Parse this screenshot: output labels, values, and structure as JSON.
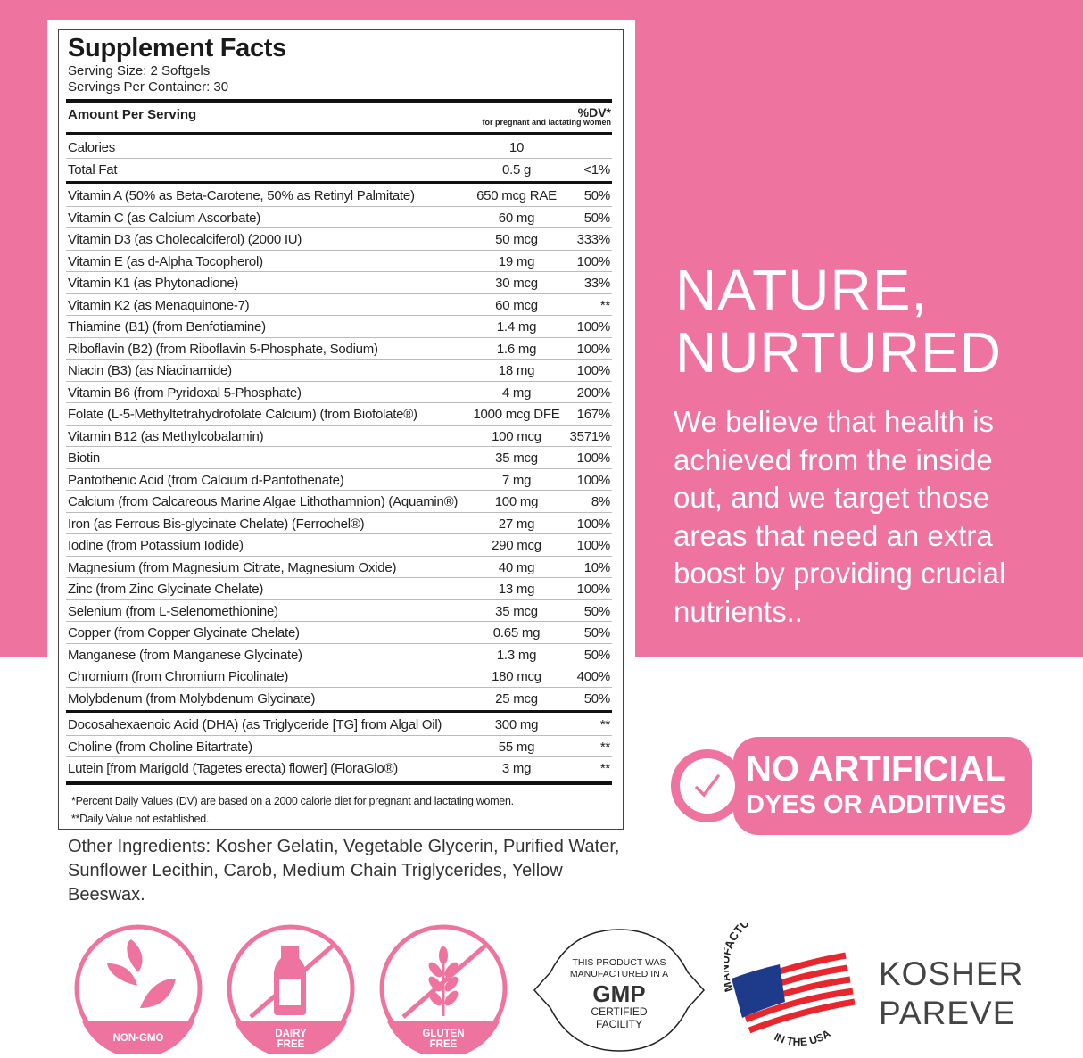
{
  "colors": {
    "brand_pink": "#ee739f"
  },
  "facts": {
    "title": "Supplement Facts",
    "serving_size": "Serving Size: 2 Softgels",
    "servings_per_container": "Servings Per Container: 30",
    "amount_header": "Amount Per Serving",
    "dv_header": "%DV*",
    "dv_subheader": "for pregnant and lactating women",
    "basic": [
      {
        "name": "Calories",
        "amount": "10",
        "dv": ""
      },
      {
        "name": "Total Fat",
        "amount": "0.5 g",
        "dv": "<1%"
      }
    ],
    "vitamins": [
      {
        "name": "Vitamin A (50% as Beta-Carotene, 50% as Retinyl Palmitate)",
        "amount": "650 mcg RAE",
        "dv": "50%"
      },
      {
        "name": "Vitamin C (as Calcium Ascorbate)",
        "amount": "60 mg",
        "dv": "50%"
      },
      {
        "name": "Vitamin D3 (as Cholecalciferol) (2000 IU)",
        "amount": "50 mcg",
        "dv": "333%"
      },
      {
        "name": "Vitamin E (as d-Alpha Tocopherol)",
        "amount": "19 mg",
        "dv": "100%"
      },
      {
        "name": "Vitamin K1 (as Phytonadione)",
        "amount": "30 mcg",
        "dv": "33%"
      },
      {
        "name": "Vitamin K2 (as Menaquinone-7)",
        "amount": "60 mcg",
        "dv": "**"
      },
      {
        "name": "Thiamine (B1) (from Benfotiamine)",
        "amount": "1.4 mg",
        "dv": "100%"
      },
      {
        "name": "Riboflavin (B2) (from Riboflavin 5-Phosphate, Sodium)",
        "amount": "1.6 mg",
        "dv": "100%"
      },
      {
        "name": "Niacin (B3) (as Niacinamide)",
        "amount": "18 mg",
        "dv": "100%"
      },
      {
        "name": "Vitamin B6 (from Pyridoxal 5-Phosphate)",
        "amount": "4 mg",
        "dv": "200%"
      },
      {
        "name": "Folate (L-5-Methyltetrahydrofolate Calcium) (from Biofolate®)",
        "amount": "1000 mcg DFE",
        "dv": "167%"
      },
      {
        "name": "Vitamin B12 (as Methylcobalamin)",
        "amount": "100 mcg",
        "dv": "3571%"
      },
      {
        "name": "Biotin",
        "amount": "35 mcg",
        "dv": "100%"
      },
      {
        "name": "Pantothenic Acid (from Calcium d-Pantothenate)",
        "amount": "7 mg",
        "dv": "100%"
      },
      {
        "name": "Calcium (from Calcareous Marine Algae Lithothamnion) (Aquamin®)",
        "amount": "100 mg",
        "dv": "8%"
      },
      {
        "name": "Iron (as Ferrous Bis-glycinate Chelate) (Ferrochel®)",
        "amount": "27 mg",
        "dv": "100%"
      },
      {
        "name": "Iodine (from Potassium Iodide)",
        "amount": "290 mcg",
        "dv": "100%"
      },
      {
        "name": "Magnesium (from Magnesium Citrate, Magnesium Oxide)",
        "amount": "40 mg",
        "dv": "10%"
      },
      {
        "name": "Zinc (from Zinc Glycinate Chelate)",
        "amount": "13 mg",
        "dv": "100%"
      },
      {
        "name": "Selenium (from L-Selenomethionine)",
        "amount": "35 mcg",
        "dv": "50%"
      },
      {
        "name": "Copper (from Copper Glycinate Chelate)",
        "amount": "0.65 mg",
        "dv": "50%"
      },
      {
        "name": "Manganese (from Manganese Glycinate)",
        "amount": "1.3 mg",
        "dv": "50%"
      },
      {
        "name": "Chromium (from Chromium Picolinate)",
        "amount": "180 mcg",
        "dv": "400%"
      },
      {
        "name": "Molybdenum (from Molybdenum Glycinate)",
        "amount": "25 mcg",
        "dv": "50%"
      }
    ],
    "others": [
      {
        "name": "Docosahexaenoic Acid (DHA) (as Triglyceride [TG] from Algal Oil)",
        "amount": "300 mg",
        "dv": "**"
      },
      {
        "name": "Choline (from Choline Bitartrate)",
        "amount": "55 mg",
        "dv": "**"
      },
      {
        "name": "Lutein [from Marigold (Tagetes erecta) flower] (FloraGlo®)",
        "amount": "3 mg",
        "dv": "**"
      }
    ],
    "footnote1": "*Percent Daily Values (DV) are based on a 2000 calorie diet for pregnant and lactating women.",
    "footnote2": "**Daily Value not established."
  },
  "other_ingredients": {
    "label": "Other Ingredients:",
    "text": " Kosher Gelatin, Vegetable Glycerin, Purified Water, Sunflower Lecithin, Carob, Medium Chain Triglycerides, Yellow Beeswax."
  },
  "headline": {
    "line1": "NATURE,",
    "line2": "NURTURED"
  },
  "tagline": "We believe that health is achieved from the inside out, and we target those areas that need an extra boost by providing crucial nutrients..",
  "badge": {
    "line1": "NO ARTIFICIAL",
    "line2": "DYES OR ADDITIVES",
    "icon": "check-icon"
  },
  "icons": [
    {
      "label1": "NON-GMO",
      "label2": "",
      "icon": "leaf-icon"
    },
    {
      "label1": "DAIRY",
      "label2": "FREE",
      "icon": "milk-bottle-icon"
    },
    {
      "label1": "GLUTEN",
      "label2": "FREE",
      "icon": "wheat-icon"
    }
  ],
  "gmp": {
    "line1": "THIS PRODUCT WAS",
    "line2": "MANUFACTURED IN A",
    "big": "GMP",
    "line3": "CERTIFIED",
    "line4": "FACILITY"
  },
  "usa": {
    "top": "MANUFACTURED",
    "bottom": "IN THE USA"
  },
  "kosher": {
    "line1": "KOSHER",
    "line2": "PAREVE"
  }
}
